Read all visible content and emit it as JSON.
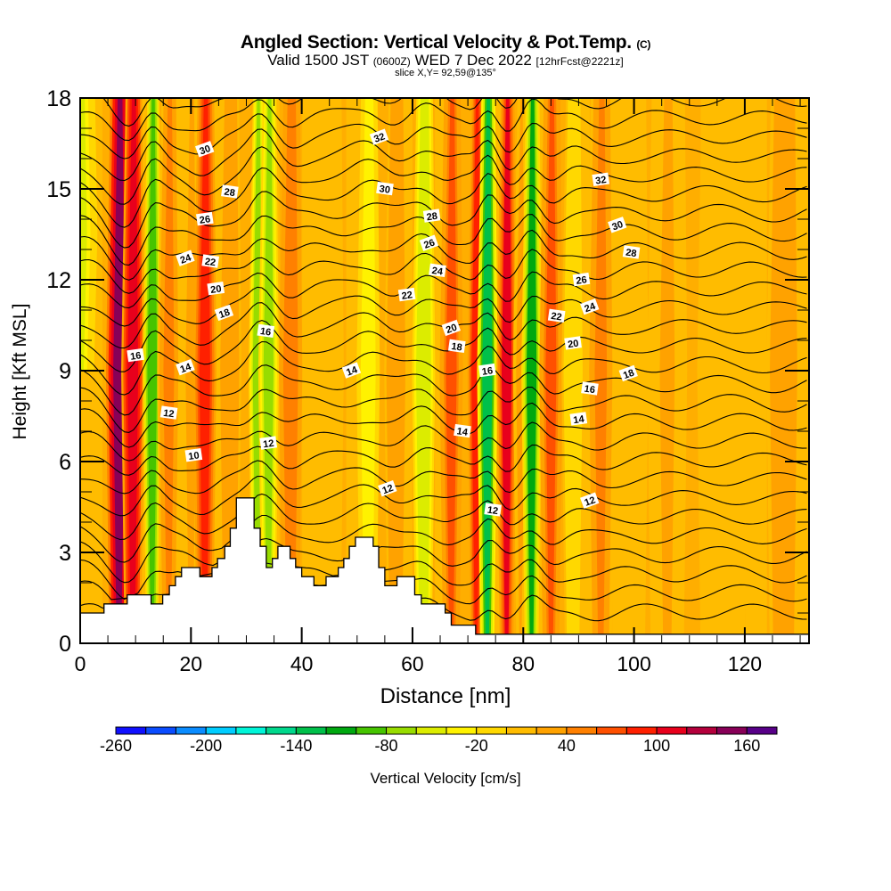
{
  "header": {
    "title": "Angled Section: Vertical Velocity & Pot.Temp.",
    "copyright": "(C)",
    "valid_prefix": "Valid 1500 JST",
    "valid_utc": "(0600Z)",
    "valid_date": "WED 7 Dec 2022",
    "forecast": "[12hrFcst@2221z]",
    "slice": "slice X,Y= 92,59@135°"
  },
  "chart_data": {
    "type": "heatmap",
    "title": "Angled Section: Vertical Velocity & Pot.Temp.",
    "xlabel": "Distance [nm]",
    "ylabel": "Height [Kft MSL]",
    "xlim": [
      0,
      131.6
    ],
    "ylim": [
      0,
      18
    ],
    "x_ticks": [
      "0",
      "20",
      "40",
      "60",
      "80",
      "100",
      "120"
    ],
    "x_tick_values": [
      0,
      20,
      40,
      60,
      80,
      100,
      120
    ],
    "y_ticks": [
      "0",
      "3",
      "6",
      "9",
      "12",
      "15",
      "18"
    ],
    "y_tick_values": [
      0,
      3,
      6,
      9,
      12,
      15,
      18
    ],
    "colorbar": {
      "title": "Vertical Velocity [cm/s]",
      "min": -260,
      "max": 180,
      "step": 20,
      "tick_labels": [
        "-260",
        "-200",
        "-140",
        "-80",
        "-20",
        "40",
        "100",
        "160"
      ],
      "tick_values": [
        -260,
        -200,
        -140,
        -80,
        -20,
        40,
        100,
        160
      ],
      "colors": [
        "#1010ff",
        "#0a4cff",
        "#0a8cff",
        "#00cdff",
        "#00f5d8",
        "#00d88c",
        "#00c04a",
        "#00a810",
        "#46c400",
        "#98dc00",
        "#dcec00",
        "#fff200",
        "#ffd800",
        "#ffbc00",
        "#ffa200",
        "#ff8000",
        "#ff5000",
        "#ff2000",
        "#e8001c",
        "#b4003c",
        "#880058",
        "#580088"
      ]
    },
    "velocity_bands": [
      {
        "x": 0,
        "w": 5,
        "v": -50,
        "top_only": true
      },
      {
        "x": 7,
        "w": 3.5,
        "v": 150
      },
      {
        "x": 9.5,
        "w": 3,
        "v": 110
      },
      {
        "x": 13,
        "w": 2.2,
        "v": -100
      },
      {
        "x": 16,
        "w": 3,
        "v": 40
      },
      {
        "x": 20,
        "w": 3,
        "v": 20
      },
      {
        "x": 22.5,
        "w": 3,
        "v": 90
      },
      {
        "x": 27,
        "w": 3,
        "v": 30
      },
      {
        "x": 32,
        "w": 2,
        "v": -70
      },
      {
        "x": 34,
        "w": 2.5,
        "v": -80
      },
      {
        "x": 38,
        "w": 3,
        "v": 50
      },
      {
        "x": 45,
        "w": 4,
        "v": 10
      },
      {
        "x": 52,
        "w": 3,
        "v": -40
      },
      {
        "x": 57,
        "w": 3,
        "v": 30
      },
      {
        "x": 62,
        "w": 3,
        "v": -60
      },
      {
        "x": 67,
        "w": 3,
        "v": 60
      },
      {
        "x": 71.5,
        "w": 2,
        "v": 90
      },
      {
        "x": 73.5,
        "w": 2.5,
        "v": -130
      },
      {
        "x": 77,
        "w": 2.5,
        "v": 100
      },
      {
        "x": 79.5,
        "w": 1.5,
        "v": 20
      },
      {
        "x": 81.5,
        "w": 2.5,
        "v": -110
      },
      {
        "x": 85,
        "w": 3,
        "v": 60
      },
      {
        "x": 89,
        "w": 3,
        "v": -20
      },
      {
        "x": 94,
        "w": 4,
        "v": 40
      },
      {
        "x": 100,
        "w": 4,
        "v": 0
      },
      {
        "x": 106,
        "w": 6,
        "v": 20
      },
      {
        "x": 116,
        "w": 8,
        "v": 10
      },
      {
        "x": 127,
        "w": 5,
        "v": 30
      }
    ],
    "terrain": [
      [
        0,
        1.0
      ],
      [
        4.3,
        1.3
      ],
      [
        8.5,
        1.6
      ],
      [
        12.8,
        1.3
      ],
      [
        14.9,
        1.6
      ],
      [
        16.1,
        1.9
      ],
      [
        17.2,
        2.2
      ],
      [
        18.3,
        2.5
      ],
      [
        21.6,
        2.2
      ],
      [
        23.8,
        2.5
      ],
      [
        24.8,
        2.8
      ],
      [
        26.1,
        3.2
      ],
      [
        27.1,
        3.8
      ],
      [
        28.2,
        4.8
      ],
      [
        31.4,
        3.8
      ],
      [
        32.5,
        3.2
      ],
      [
        33.6,
        2.5
      ],
      [
        34.7,
        2.8
      ],
      [
        35.7,
        3.2
      ],
      [
        37.9,
        2.8
      ],
      [
        38.9,
        2.5
      ],
      [
        40.0,
        2.2
      ],
      [
        42.2,
        1.9
      ],
      [
        44.4,
        2.2
      ],
      [
        46.6,
        2.5
      ],
      [
        47.6,
        2.8
      ],
      [
        48.6,
        3.2
      ],
      [
        49.7,
        3.5
      ],
      [
        52.9,
        3.2
      ],
      [
        53.9,
        2.5
      ],
      [
        55.0,
        1.9
      ],
      [
        57.2,
        2.2
      ],
      [
        60.4,
        1.6
      ],
      [
        61.6,
        1.3
      ],
      [
        65.9,
        1.0
      ],
      [
        67.0,
        0.6
      ],
      [
        71.4,
        0.3
      ],
      [
        131.6,
        0.3
      ]
    ],
    "contour_levels": [
      4,
      6,
      8,
      10,
      11,
      12,
      13,
      14,
      15,
      16,
      17,
      18,
      19,
      20,
      21,
      22,
      23,
      24,
      25,
      26,
      27,
      28,
      29,
      30,
      31,
      32,
      33,
      34
    ],
    "contour_labels": [
      {
        "text": "30",
        "x": 22.5,
        "y": 16.3
      },
      {
        "text": "28",
        "x": 27,
        "y": 14.9
      },
      {
        "text": "26",
        "x": 22.5,
        "y": 14.0
      },
      {
        "text": "24",
        "x": 19,
        "y": 12.7
      },
      {
        "text": "22",
        "x": 23.5,
        "y": 12.6
      },
      {
        "text": "20",
        "x": 24.5,
        "y": 11.7
      },
      {
        "text": "18",
        "x": 26,
        "y": 10.9
      },
      {
        "text": "16",
        "x": 33.5,
        "y": 10.3
      },
      {
        "text": "16",
        "x": 10,
        "y": 9.5
      },
      {
        "text": "14",
        "x": 19,
        "y": 9.1
      },
      {
        "text": "12",
        "x": 16,
        "y": 7.6
      },
      {
        "text": "10",
        "x": 20.5,
        "y": 6.2
      },
      {
        "text": "32",
        "x": 54,
        "y": 16.7
      },
      {
        "text": "30",
        "x": 55,
        "y": 15.0
      },
      {
        "text": "28",
        "x": 63.5,
        "y": 14.1
      },
      {
        "text": "26",
        "x": 63,
        "y": 13.2
      },
      {
        "text": "24",
        "x": 64.5,
        "y": 12.3
      },
      {
        "text": "22",
        "x": 59,
        "y": 11.5
      },
      {
        "text": "20",
        "x": 67,
        "y": 10.4
      },
      {
        "text": "18",
        "x": 68,
        "y": 9.8
      },
      {
        "text": "16",
        "x": 73.5,
        "y": 9.0
      },
      {
        "text": "14",
        "x": 49,
        "y": 9.0
      },
      {
        "text": "14",
        "x": 69,
        "y": 7.0
      },
      {
        "text": "12",
        "x": 34,
        "y": 6.6
      },
      {
        "text": "12",
        "x": 55.5,
        "y": 5.1
      },
      {
        "text": "12",
        "x": 74.5,
        "y": 4.4
      },
      {
        "text": "32",
        "x": 94,
        "y": 15.3
      },
      {
        "text": "30",
        "x": 97,
        "y": 13.8
      },
      {
        "text": "28",
        "x": 99.5,
        "y": 12.9
      },
      {
        "text": "26",
        "x": 90.5,
        "y": 12.0
      },
      {
        "text": "24",
        "x": 92,
        "y": 11.1
      },
      {
        "text": "22",
        "x": 86,
        "y": 10.8
      },
      {
        "text": "20",
        "x": 89,
        "y": 9.9
      },
      {
        "text": "18",
        "x": 99,
        "y": 8.9
      },
      {
        "text": "16",
        "x": 92,
        "y": 8.4
      },
      {
        "text": "14",
        "x": 90,
        "y": 7.4
      },
      {
        "text": "12",
        "x": 92,
        "y": 4.7
      }
    ]
  }
}
